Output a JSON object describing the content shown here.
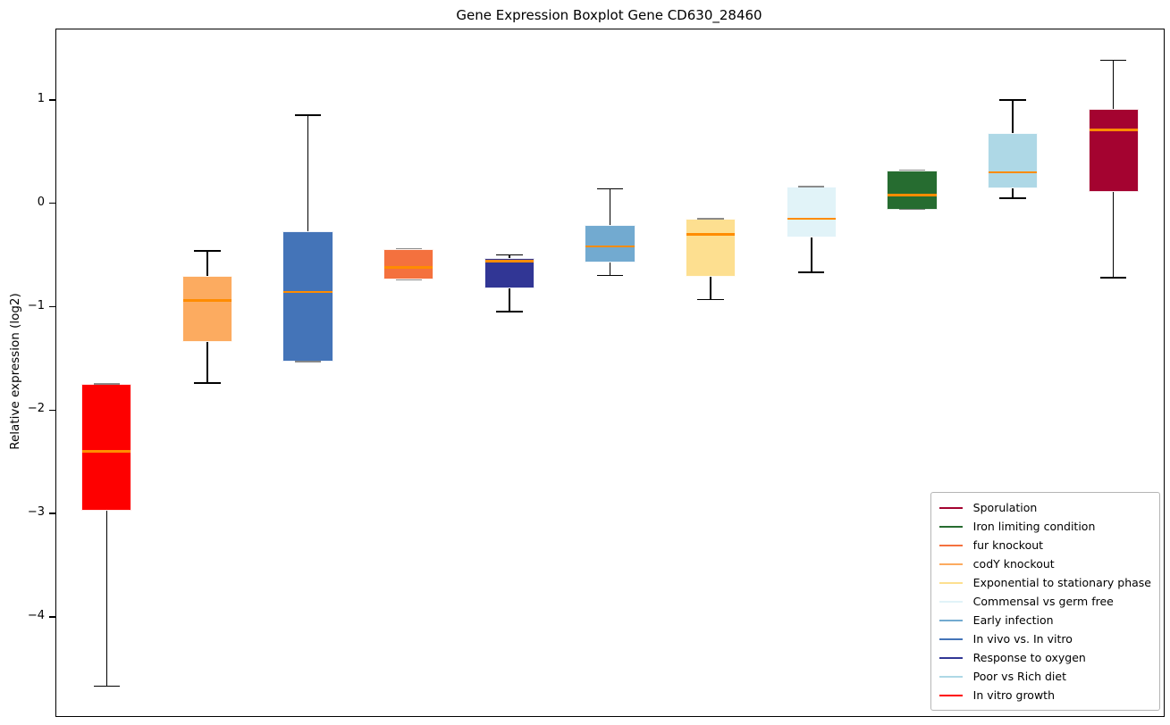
{
  "chart_data": {
    "type": "boxplot",
    "title": "Gene Expression Boxplot Gene CD630_28460",
    "xlabel": "",
    "ylabel": "Relative expression (log2)",
    "ylim": [
      -4.95,
      1.69
    ],
    "yticks": [
      1,
      0,
      -1,
      -2,
      -3,
      -4
    ],
    "ytick_labels": [
      "1",
      "0",
      "−1",
      "−2",
      "−3",
      "−4"
    ],
    "grid": false,
    "legend_position": "lower right",
    "median_color": "#ff8c00",
    "whisker_color": "#000000",
    "series": [
      {
        "name": "In vitro growth",
        "color": "#fe0000",
        "whisker_low": -4.66,
        "q1": -2.96,
        "median": -2.39,
        "q3": -1.74,
        "whisker_high": -1.74
      },
      {
        "name": "codY knockout",
        "color": "#fcab60",
        "whisker_low": -1.73,
        "q1": -1.33,
        "median": -0.93,
        "q3": -0.69,
        "whisker_high": -0.45
      },
      {
        "name": "In vivo vs. In vitro",
        "color": "#4474b8",
        "whisker_low": -1.52,
        "q1": -1.52,
        "median": -0.85,
        "q3": -0.26,
        "whisker_high": 0.86
      },
      {
        "name": "fur knockout",
        "color": "#f4713e",
        "whisker_low": -0.73,
        "q1": -0.73,
        "median": -0.61,
        "q3": -0.43,
        "whisker_high": -0.43
      },
      {
        "name": "Response to oxygen",
        "color": "#313695",
        "whisker_low": -1.04,
        "q1": -0.81,
        "median": -0.55,
        "q3": -0.52,
        "whisker_high": -0.49
      },
      {
        "name": "Early infection",
        "color": "#72aad0",
        "whisker_low": -0.69,
        "q1": -0.56,
        "median": -0.41,
        "q3": -0.2,
        "whisker_high": 0.15
      },
      {
        "name": "Exponential to stationary phase",
        "color": "#fddf90",
        "whisker_low": -0.92,
        "q1": -0.7,
        "median": -0.29,
        "q3": -0.14,
        "whisker_high": -0.14
      },
      {
        "name": "Commensal vs germ free",
        "color": "#e1f3f8",
        "whisker_low": -0.66,
        "q1": -0.32,
        "median": -0.14,
        "q3": 0.17,
        "whisker_high": 0.17
      },
      {
        "name": "Iron limiting condition",
        "color": "#266c30",
        "whisker_low": -0.05,
        "q1": -0.05,
        "median": 0.09,
        "q3": 0.33,
        "whisker_high": 0.33
      },
      {
        "name": "Poor vs Rich diet",
        "color": "#aed8e6",
        "whisker_low": 0.06,
        "q1": 0.15,
        "median": 0.31,
        "q3": 0.69,
        "whisker_high": 1.01
      },
      {
        "name": "Sporulation",
        "color": "#a40330",
        "whisker_low": -0.71,
        "q1": 0.12,
        "median": 0.72,
        "q3": 0.92,
        "whisker_high": 1.39
      }
    ],
    "legend": [
      {
        "label": "Sporulation",
        "color": "#a40330"
      },
      {
        "label": "Iron limiting condition",
        "color": "#266c30"
      },
      {
        "label": "fur knockout",
        "color": "#f4713e"
      },
      {
        "label": "codY knockout",
        "color": "#fcab60"
      },
      {
        "label": "Exponential to stationary phase",
        "color": "#fddf90"
      },
      {
        "label": "Commensal vs germ free",
        "color": "#e1f3f8"
      },
      {
        "label": "Early infection",
        "color": "#72aad0"
      },
      {
        "label": "In vivo vs. In vitro",
        "color": "#4474b8"
      },
      {
        "label": "Response to oxygen",
        "color": "#313695"
      },
      {
        "label": "Poor vs Rich diet",
        "color": "#aed8e6"
      },
      {
        "label": "In vitro growth",
        "color": "#fe0000"
      }
    ]
  }
}
